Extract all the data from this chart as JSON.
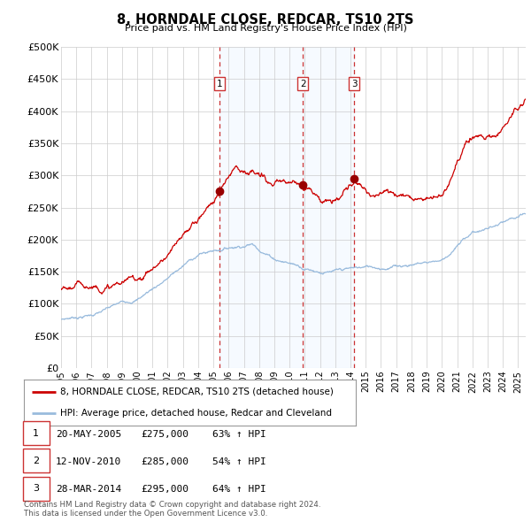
{
  "title": "8, HORNDALE CLOSE, REDCAR, TS10 2TS",
  "subtitle": "Price paid vs. HM Land Registry's House Price Index (HPI)",
  "background_color": "#ffffff",
  "plot_bg_color": "#ffffff",
  "grid_color": "#cccccc",
  "line1_color": "#cc0000",
  "line2_color": "#99bbdd",
  "shade_color": "#ddeeff",
  "sale_marker_color": "#990000",
  "vline_color": "#cc3333",
  "sale_dates": [
    2005.38,
    2010.87,
    2014.24
  ],
  "sale_prices": [
    275000,
    285000,
    295000
  ],
  "sale_labels": [
    "1",
    "2",
    "3"
  ],
  "legend_line1": "8, HORNDALE CLOSE, REDCAR, TS10 2TS (detached house)",
  "legend_line2": "HPI: Average price, detached house, Redcar and Cleveland",
  "table_rows": [
    [
      "1",
      "20-MAY-2005",
      "£275,000",
      "63% ↑ HPI"
    ],
    [
      "2",
      "12-NOV-2010",
      "£285,000",
      "54% ↑ HPI"
    ],
    [
      "3",
      "28-MAR-2014",
      "£295,000",
      "64% ↑ HPI"
    ]
  ],
  "footer": "Contains HM Land Registry data © Crown copyright and database right 2024.\nThis data is licensed under the Open Government Licence v3.0.",
  "ylim": [
    0,
    500000
  ],
  "yticks": [
    0,
    50000,
    100000,
    150000,
    200000,
    250000,
    300000,
    350000,
    400000,
    450000,
    500000
  ],
  "ytick_labels": [
    "£0",
    "£50K",
    "£100K",
    "£150K",
    "£200K",
    "£250K",
    "£300K",
    "£350K",
    "£400K",
    "£450K",
    "£500K"
  ],
  "xlim_start": 1995.0,
  "xlim_end": 2025.5,
  "xticks": [
    1995,
    1996,
    1997,
    1998,
    1999,
    2000,
    2001,
    2002,
    2003,
    2004,
    2005,
    2006,
    2007,
    2008,
    2009,
    2010,
    2011,
    2012,
    2013,
    2014,
    2015,
    2016,
    2017,
    2018,
    2019,
    2020,
    2021,
    2022,
    2023,
    2024,
    2025
  ]
}
